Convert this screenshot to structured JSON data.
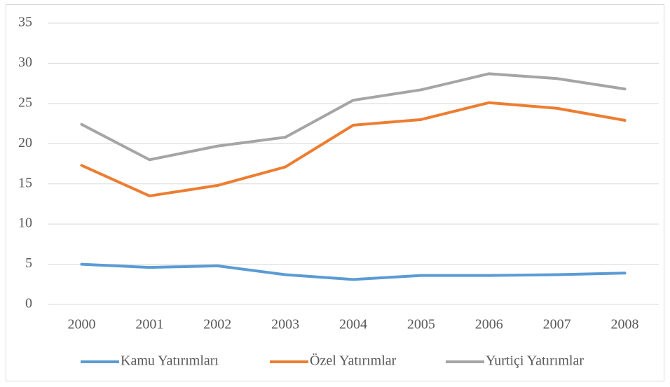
{
  "chart_data": {
    "type": "line",
    "categories": [
      "2000",
      "2001",
      "2002",
      "2003",
      "2004",
      "2005",
      "2006",
      "2007",
      "2008"
    ],
    "series": [
      {
        "name": "Kamu Yatırımları",
        "color": "#5b9bd5",
        "values": [
          5.0,
          4.6,
          4.8,
          3.7,
          3.1,
          3.6,
          3.6,
          3.7,
          3.9
        ]
      },
      {
        "name": "Özel Yatırımlar",
        "color": "#ed7d31",
        "values": [
          17.3,
          13.5,
          14.8,
          17.1,
          22.3,
          23.0,
          25.1,
          24.4,
          22.9
        ]
      },
      {
        "name": "Yurtiçi Yatırımlar",
        "color": "#a5a5a5",
        "values": [
          22.4,
          18.0,
          19.7,
          20.8,
          25.4,
          26.7,
          28.7,
          28.1,
          26.8
        ]
      }
    ],
    "ylim": [
      0,
      35
    ],
    "yticks": [
      0,
      5,
      10,
      15,
      20,
      25,
      30,
      35
    ],
    "grid": true,
    "legend": "bottom"
  }
}
